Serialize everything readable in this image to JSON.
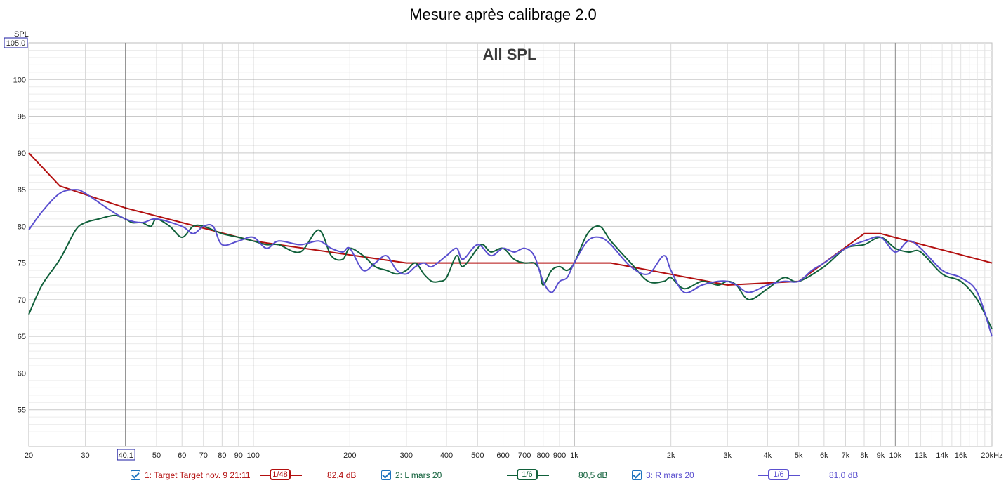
{
  "title": "Mesure après calibrage 2.0",
  "chart_data": {
    "type": "line",
    "title": "Mesure après calibrage 2.0",
    "overlay_title": "All SPL",
    "x_scale": "log",
    "xlim": [
      20,
      20000
    ],
    "ylim": [
      50,
      105
    ],
    "ylabel": "SPL",
    "y_top_readout": "105,0",
    "cursor_readout": "40,1",
    "cursor_x": 40.1,
    "y_ticks": [
      "100",
      "95",
      "90",
      "85",
      "80",
      "75",
      "70",
      "65",
      "60",
      "55"
    ],
    "x_tick_labels": [
      {
        "f": 20,
        "label": "20"
      },
      {
        "f": 30,
        "label": "30"
      },
      {
        "f": 50,
        "label": "50"
      },
      {
        "f": 60,
        "label": "60"
      },
      {
        "f": 70,
        "label": "70"
      },
      {
        "f": 80,
        "label": "80"
      },
      {
        "f": 90,
        "label": "90"
      },
      {
        "f": 100,
        "label": "100"
      },
      {
        "f": 200,
        "label": "200"
      },
      {
        "f": 300,
        "label": "300"
      },
      {
        "f": 400,
        "label": "400"
      },
      {
        "f": 500,
        "label": "500"
      },
      {
        "f": 600,
        "label": "600"
      },
      {
        "f": 700,
        "label": "700"
      },
      {
        "f": 800,
        "label": "800"
      },
      {
        "f": 900,
        "label": "900"
      },
      {
        "f": 1000,
        "label": "1k"
      },
      {
        "f": 2000,
        "label": "2k"
      },
      {
        "f": 3000,
        "label": "3k"
      },
      {
        "f": 4000,
        "label": "4k"
      },
      {
        "f": 5000,
        "label": "5k"
      },
      {
        "f": 6000,
        "label": "6k"
      },
      {
        "f": 7000,
        "label": "7k"
      },
      {
        "f": 8000,
        "label": "8k"
      },
      {
        "f": 9000,
        "label": "9k"
      },
      {
        "f": 10000,
        "label": "10k"
      },
      {
        "f": 12000,
        "label": "12k"
      },
      {
        "f": 14000,
        "label": "14k"
      },
      {
        "f": 16000,
        "label": "16k"
      },
      {
        "f": 20000,
        "label": "20kHz"
      }
    ],
    "grid": true,
    "series": [
      {
        "name": "1: Target Target nov. 9 21:11",
        "color": "#b30f0f",
        "smoothing": "1/48",
        "level": "82,4 dB",
        "points": [
          [
            20,
            90
          ],
          [
            25,
            85.5
          ],
          [
            40,
            82.5
          ],
          [
            100,
            78
          ],
          [
            300,
            75
          ],
          [
            1300,
            75
          ],
          [
            3000,
            72
          ],
          [
            5000,
            72.5
          ],
          [
            8000,
            79
          ],
          [
            9000,
            79
          ],
          [
            20000,
            75
          ]
        ]
      },
      {
        "name": "2: L mars 20",
        "color": "#10603a",
        "smoothing": "1/6",
        "level": "80,5 dB",
        "points": [
          [
            20,
            68
          ],
          [
            22,
            72
          ],
          [
            25,
            75.5
          ],
          [
            28,
            79.5
          ],
          [
            30,
            80.5
          ],
          [
            33,
            81
          ],
          [
            37,
            81.5
          ],
          [
            40,
            81
          ],
          [
            42,
            80.5
          ],
          [
            45,
            80.5
          ],
          [
            48,
            80
          ],
          [
            50,
            81
          ],
          [
            55,
            80
          ],
          [
            60,
            78.5
          ],
          [
            65,
            80
          ],
          [
            70,
            80
          ],
          [
            80,
            79
          ],
          [
            90,
            78.5
          ],
          [
            100,
            78
          ],
          [
            110,
            77.5
          ],
          [
            120,
            77.5
          ],
          [
            140,
            76.5
          ],
          [
            160,
            79.5
          ],
          [
            175,
            76
          ],
          [
            190,
            75.5
          ],
          [
            200,
            77
          ],
          [
            220,
            76
          ],
          [
            240,
            74.5
          ],
          [
            260,
            74
          ],
          [
            280,
            73.5
          ],
          [
            300,
            74
          ],
          [
            320,
            75
          ],
          [
            340,
            73.5
          ],
          [
            360,
            72.5
          ],
          [
            380,
            72.5
          ],
          [
            400,
            73
          ],
          [
            430,
            76
          ],
          [
            450,
            74.5
          ],
          [
            500,
            77
          ],
          [
            520,
            77.5
          ],
          [
            550,
            76.5
          ],
          [
            600,
            77
          ],
          [
            650,
            75.5
          ],
          [
            700,
            75
          ],
          [
            750,
            75
          ],
          [
            780,
            74
          ],
          [
            800,
            72
          ],
          [
            850,
            74
          ],
          [
            900,
            74.5
          ],
          [
            950,
            74
          ],
          [
            1000,
            75
          ],
          [
            1100,
            79
          ],
          [
            1200,
            80
          ],
          [
            1300,
            78
          ],
          [
            1500,
            75
          ],
          [
            1700,
            72.5
          ],
          [
            1900,
            72.5
          ],
          [
            2000,
            73
          ],
          [
            2200,
            71.5
          ],
          [
            2500,
            72.5
          ],
          [
            2800,
            72
          ],
          [
            3000,
            72.5
          ],
          [
            3200,
            72
          ],
          [
            3500,
            70
          ],
          [
            4000,
            71.5
          ],
          [
            4500,
            73
          ],
          [
            5000,
            72.5
          ],
          [
            6000,
            74.5
          ],
          [
            7000,
            77
          ],
          [
            8000,
            77.5
          ],
          [
            9000,
            78.5
          ],
          [
            10000,
            77
          ],
          [
            11000,
            76.5
          ],
          [
            12000,
            76.5
          ],
          [
            14000,
            73.5
          ],
          [
            16000,
            72.5
          ],
          [
            18000,
            70
          ],
          [
            20000,
            66
          ]
        ]
      },
      {
        "name": "3: R mars 20",
        "color": "#5a4fcf",
        "smoothing": "1/6",
        "level": "81,0 dB",
        "points": [
          [
            20,
            79.5
          ],
          [
            22,
            82
          ],
          [
            25,
            84.5
          ],
          [
            28,
            85
          ],
          [
            30,
            84.5
          ],
          [
            35,
            82.5
          ],
          [
            40,
            81
          ],
          [
            45,
            80.5
          ],
          [
            50,
            81
          ],
          [
            60,
            80
          ],
          [
            65,
            79
          ],
          [
            70,
            80
          ],
          [
            75,
            80
          ],
          [
            80,
            77.5
          ],
          [
            90,
            78
          ],
          [
            100,
            78.5
          ],
          [
            110,
            77
          ],
          [
            120,
            78
          ],
          [
            140,
            77.5
          ],
          [
            160,
            78
          ],
          [
            175,
            77
          ],
          [
            190,
            76.5
          ],
          [
            200,
            77
          ],
          [
            220,
            74
          ],
          [
            240,
            75
          ],
          [
            260,
            76
          ],
          [
            280,
            74
          ],
          [
            300,
            73.5
          ],
          [
            320,
            74.5
          ],
          [
            340,
            75
          ],
          [
            360,
            74.5
          ],
          [
            400,
            76
          ],
          [
            430,
            77
          ],
          [
            450,
            75.5
          ],
          [
            500,
            77.5
          ],
          [
            550,
            76
          ],
          [
            600,
            77
          ],
          [
            650,
            76.5
          ],
          [
            700,
            77
          ],
          [
            750,
            76
          ],
          [
            800,
            72.5
          ],
          [
            850,
            71
          ],
          [
            900,
            72.5
          ],
          [
            950,
            73
          ],
          [
            1000,
            75
          ],
          [
            1100,
            78
          ],
          [
            1200,
            78.5
          ],
          [
            1300,
            77.5
          ],
          [
            1500,
            74.5
          ],
          [
            1700,
            73.5
          ],
          [
            1900,
            76
          ],
          [
            2000,
            74
          ],
          [
            2200,
            71
          ],
          [
            2500,
            72
          ],
          [
            2800,
            72.5
          ],
          [
            3000,
            72.5
          ],
          [
            3200,
            72
          ],
          [
            3500,
            71
          ],
          [
            4000,
            72
          ],
          [
            4500,
            72.5
          ],
          [
            5000,
            72.5
          ],
          [
            5500,
            74
          ],
          [
            6000,
            75
          ],
          [
            7000,
            77
          ],
          [
            8000,
            78
          ],
          [
            9000,
            78.5
          ],
          [
            10000,
            76.5
          ],
          [
            11000,
            78
          ],
          [
            12000,
            77
          ],
          [
            14000,
            74
          ],
          [
            16000,
            73
          ],
          [
            18000,
            71
          ],
          [
            20000,
            65
          ]
        ]
      }
    ]
  },
  "legend": [
    {
      "label": "1: Target Target nov. 9 21:11",
      "smoothing": "1/48",
      "level": "82,4 dB",
      "color": "#b30f0f"
    },
    {
      "label": "2: L mars 20",
      "smoothing": "1/6",
      "level": "80,5 dB",
      "color": "#10603a"
    },
    {
      "label": "3: R mars 20",
      "smoothing": "1/6",
      "level": "81,0 dB",
      "color": "#5a4fcf"
    }
  ]
}
